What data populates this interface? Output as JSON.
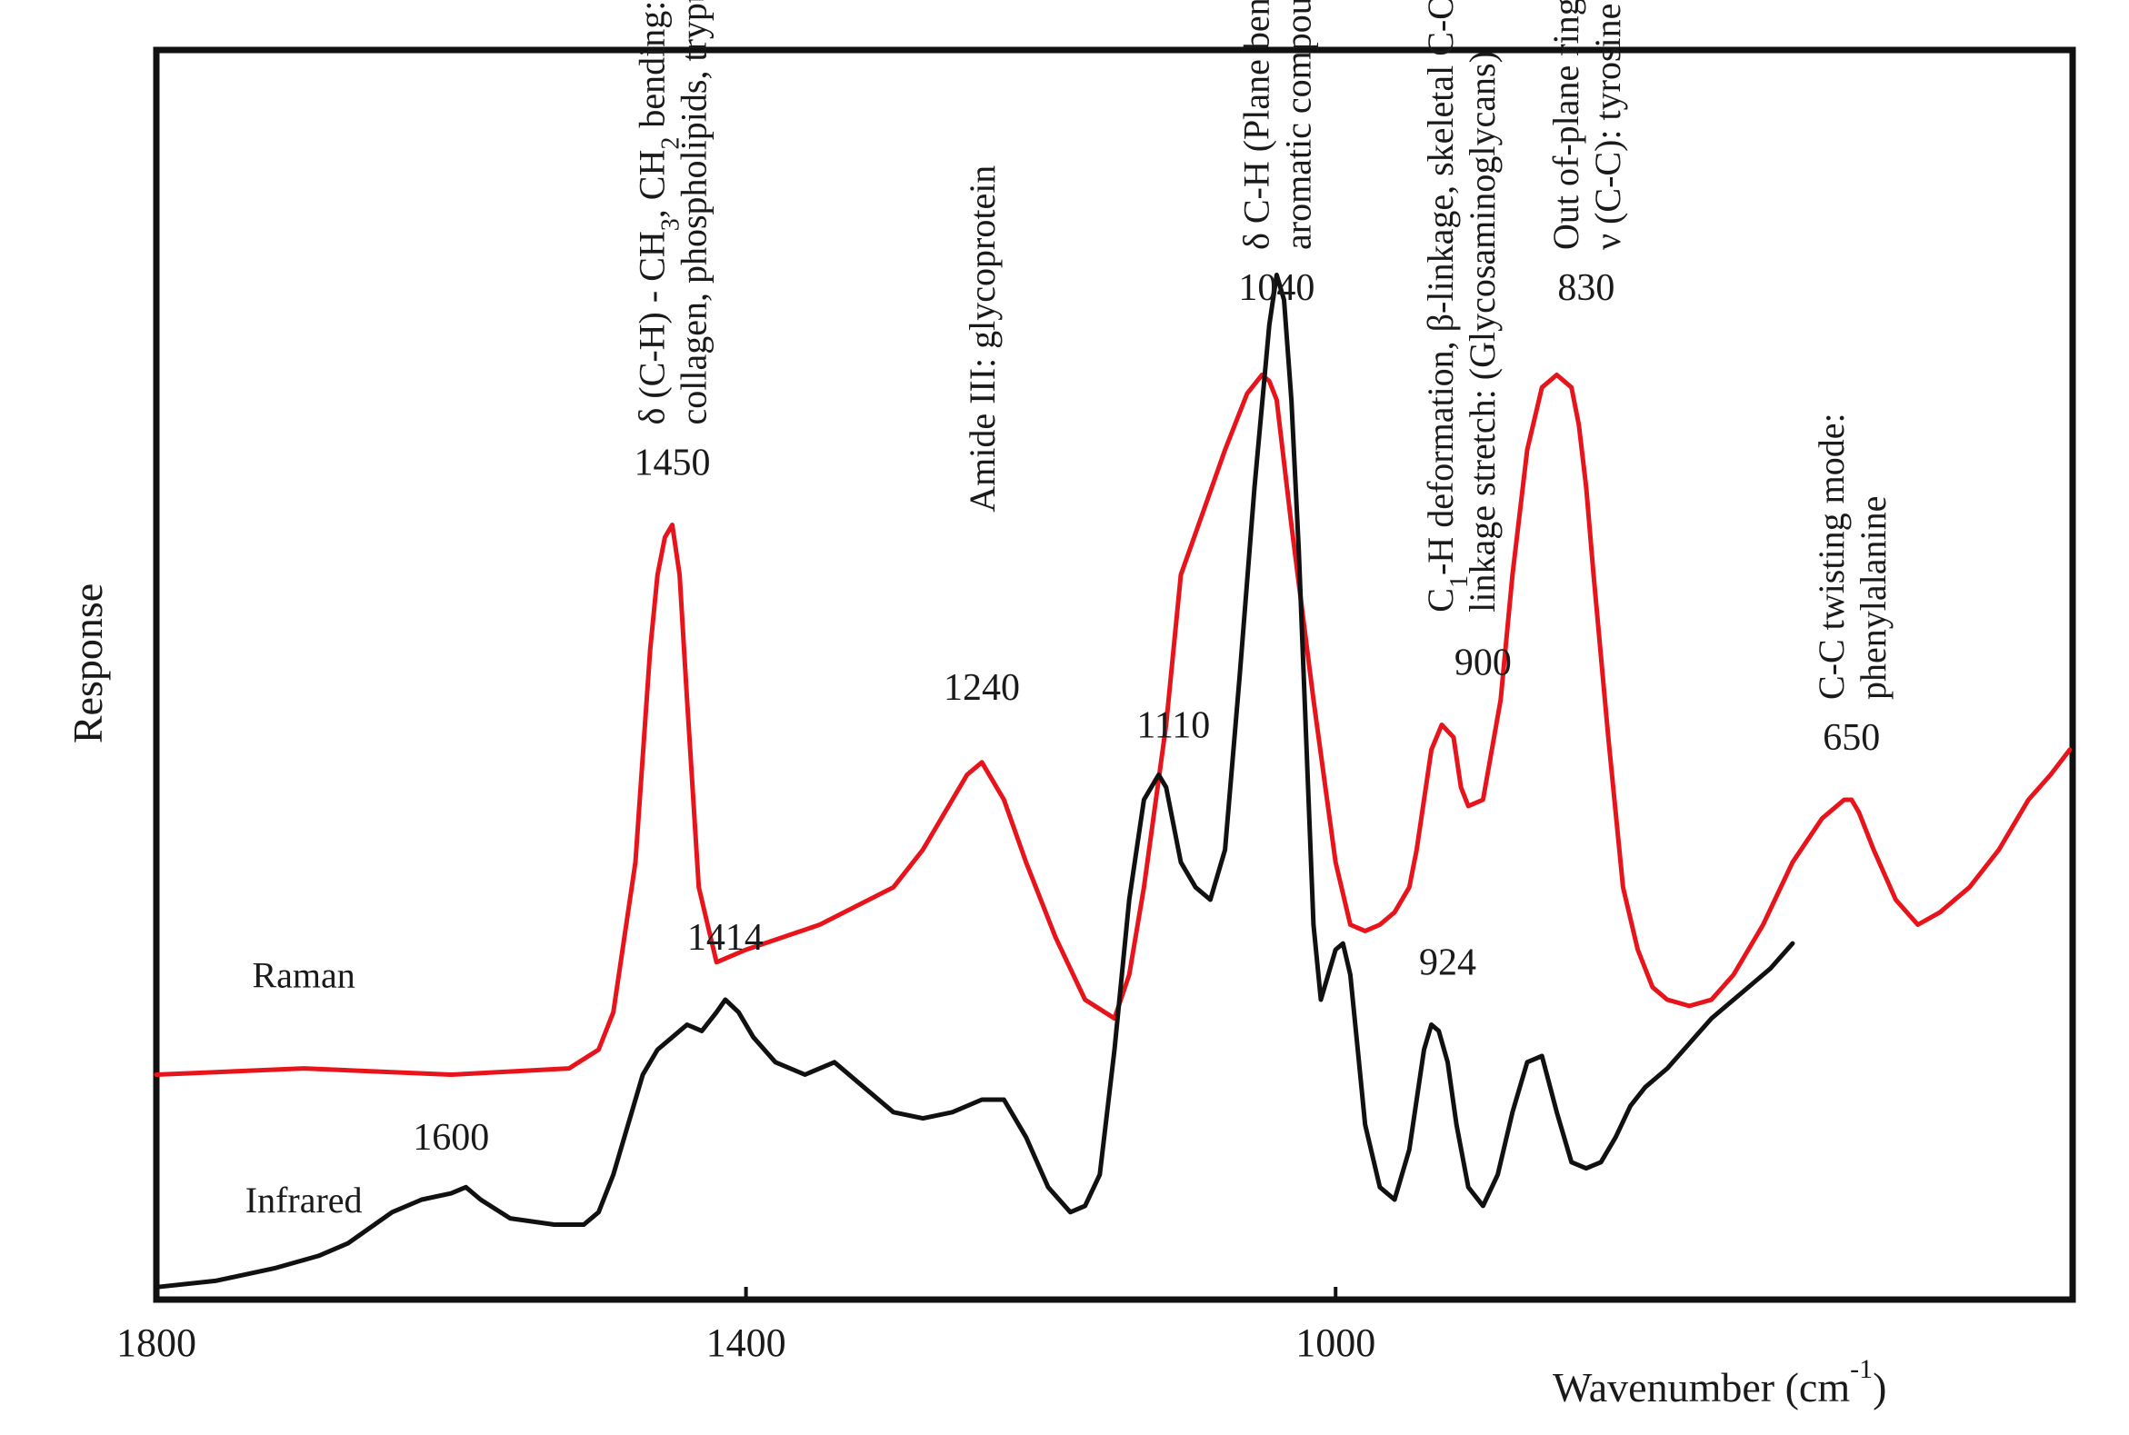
{
  "chart_data": {
    "type": "line",
    "title": "",
    "xlabel": "Wavenumber (cm",
    "xlabel_superscript": "-1",
    "xlabel_close": ")",
    "ylabel": "Response",
    "xlim": [
      1800,
      500
    ],
    "ylim": [
      0,
      100
    ],
    "grid": false,
    "x_ticks": [
      {
        "value": 1800,
        "label": "1800"
      },
      {
        "value": 1400,
        "label": "1400"
      },
      {
        "value": 1000,
        "label": "1000"
      }
    ],
    "series": [
      {
        "name": "Raman",
        "color": "#e8141b",
        "x": [
          1800,
          1700,
          1600,
          1520,
          1500,
          1490,
          1475,
          1465,
          1460,
          1455,
          1450,
          1445,
          1440,
          1432,
          1420,
          1400,
          1350,
          1300,
          1280,
          1260,
          1250,
          1240,
          1225,
          1210,
          1190,
          1170,
          1150,
          1140,
          1130,
          1115,
          1105,
          1090,
          1075,
          1060,
          1050,
          1045,
          1040,
          1030,
          1015,
          1000,
          990,
          980,
          970,
          960,
          950,
          945,
          940,
          935,
          928,
          920,
          915,
          910,
          900,
          888,
          880,
          870,
          860,
          850,
          840,
          835,
          830,
          825,
          815,
          805,
          795,
          785,
          775,
          760,
          745,
          730,
          710,
          690,
          670,
          655,
          650,
          645,
          635,
          620,
          605,
          590,
          570,
          550,
          530,
          515,
          502
        ],
        "values": [
          18.0,
          18.5,
          18.0,
          18.5,
          20.0,
          23.0,
          35.0,
          52.0,
          58.0,
          61.0,
          62.0,
          58.0,
          48.0,
          33.0,
          27.0,
          28.0,
          30.0,
          33.0,
          36.0,
          40.0,
          42.0,
          43.0,
          40.0,
          35.0,
          29.0,
          24.0,
          22.5,
          26.0,
          33.0,
          46.0,
          58.0,
          63.0,
          68.0,
          72.5,
          74.0,
          73.5,
          72.0,
          62.0,
          48.0,
          35.0,
          30.0,
          29.5,
          30.0,
          31.0,
          33.0,
          36.0,
          40.0,
          44.0,
          46.0,
          45.0,
          41.0,
          39.5,
          40.0,
          48.0,
          58.0,
          68.0,
          73.0,
          74.0,
          73.0,
          70.0,
          65.0,
          58.0,
          45.0,
          33.0,
          28.0,
          25.0,
          24.0,
          23.5,
          24.0,
          26.0,
          30.0,
          35.0,
          38.5,
          40.0,
          40.0,
          39.0,
          36.0,
          32.0,
          30.0,
          31.0,
          33.0,
          36.0,
          40.0,
          42.0,
          44.0
        ]
      },
      {
        "name": "Infrared",
        "color": "#111111",
        "x": [
          1800,
          1760,
          1720,
          1690,
          1670,
          1640,
          1620,
          1600,
          1590,
          1580,
          1560,
          1530,
          1510,
          1500,
          1490,
          1480,
          1470,
          1460,
          1450,
          1440,
          1430,
          1420,
          1414,
          1405,
          1395,
          1380,
          1360,
          1340,
          1320,
          1300,
          1280,
          1260,
          1240,
          1225,
          1210,
          1195,
          1180,
          1170,
          1160,
          1150,
          1140,
          1130,
          1120,
          1115,
          1110,
          1105,
          1095,
          1085,
          1075,
          1065,
          1055,
          1045,
          1040,
          1035,
          1030,
          1025,
          1020,
          1015,
          1010,
          1005,
          1000,
          995,
          990,
          985,
          980,
          970,
          960,
          950,
          940,
          935,
          930,
          924,
          918,
          910,
          900,
          890,
          880,
          870,
          860,
          850,
          840,
          830,
          820,
          810,
          800,
          790,
          775,
          760,
          745,
          725,
          705,
          690
        ],
        "values": [
          1.0,
          1.5,
          2.5,
          3.5,
          4.5,
          7.0,
          8.0,
          8.5,
          9.0,
          8.0,
          6.5,
          6.0,
          6.0,
          7.0,
          10.0,
          14.0,
          18.0,
          20.0,
          21.0,
          22.0,
          21.5,
          23.0,
          24.0,
          23.0,
          21.0,
          19.0,
          18.0,
          19.0,
          17.0,
          15.0,
          14.5,
          15.0,
          16.0,
          16.0,
          13.0,
          9.0,
          7.0,
          7.5,
          10.0,
          20.0,
          32.0,
          40.0,
          42.0,
          41.0,
          38.0,
          35.0,
          33.0,
          32.0,
          36.0,
          50.0,
          65.0,
          78.0,
          82.0,
          80.0,
          72.0,
          60.0,
          45.0,
          30.0,
          24.0,
          26.0,
          28.0,
          28.5,
          26.0,
          20.0,
          14.0,
          9.0,
          8.0,
          12.0,
          20.0,
          22.0,
          21.5,
          19.0,
          14.0,
          9.0,
          7.5,
          10.0,
          15.0,
          19.0,
          19.5,
          15.0,
          11.0,
          10.5,
          11.0,
          13.0,
          15.5,
          17.0,
          18.5,
          20.5,
          22.5,
          24.5,
          26.5,
          28.5
        ]
      }
    ],
    "series_labels": [
      {
        "text": "Raman",
        "x": 1700,
        "y": 25
      },
      {
        "text": "Infrared",
        "x": 1700,
        "y": 7
      }
    ],
    "peak_labels": [
      {
        "text": "1450",
        "x": 1450,
        "y": 66
      },
      {
        "text": "1240",
        "x": 1240,
        "y": 48
      },
      {
        "text": "1110",
        "x": 1110,
        "y": 45
      },
      {
        "text": "1040",
        "x": 1040,
        "y": 80
      },
      {
        "text": "900",
        "x": 900,
        "y": 50
      },
      {
        "text": "830",
        "x": 830,
        "y": 80
      },
      {
        "text": "650",
        "x": 650,
        "y": 44
      },
      {
        "text": "1414",
        "x": 1414,
        "y": 28
      },
      {
        "text": "1600",
        "x": 1600,
        "y": 12
      },
      {
        "text": "924",
        "x": 924,
        "y": 26
      }
    ],
    "band_annotations": [
      {
        "id": "ch-bending",
        "x": 1450,
        "y": 70,
        "lines": [
          [
            {
              "t": "δ (C-H) - CH"
            },
            {
              "t": "3",
              "sub": true
            },
            {
              "t": ", CH"
            },
            {
              "t": "2",
              "sub": true
            },
            {
              "t": " bending:"
            }
          ],
          [
            {
              "t": "collagen, phospholipids, tryptophan"
            }
          ]
        ]
      },
      {
        "id": "amide-iii",
        "x": 1240,
        "y": 63,
        "lines": [
          [
            {
              "t": "Amide III: glycoprotein"
            }
          ]
        ]
      },
      {
        "id": "plane-bending",
        "x": 1040,
        "y": 84,
        "lines": [
          [
            {
              "t": "δ C-H (Plane bending)"
            }
          ],
          [
            {
              "t": "aromatic compound:"
            }
          ]
        ]
      },
      {
        "id": "c1h-deformation",
        "x": 915,
        "y": 55,
        "lines": [
          [
            {
              "t": "C"
            },
            {
              "t": "1",
              "sub": true
            },
            {
              "t": "-H deformation, β-linkage, skeletal C-O-C"
            }
          ],
          [
            {
              "t": "linkage stretch: (Glycosaminoglycans)"
            }
          ]
        ]
      },
      {
        "id": "ring-breathing",
        "x": 830,
        "y": 84,
        "lines": [
          [
            {
              "t": "Out of-plane ring breathing"
            }
          ],
          [
            {
              "t": "ν (C-C): tyrosine"
            }
          ]
        ]
      },
      {
        "id": "cc-twisting",
        "x": 650,
        "y": 48,
        "lines": [
          [
            {
              "t": "C-C twisting mode:"
            }
          ],
          [
            {
              "t": "phenylalanine"
            }
          ]
        ]
      }
    ]
  }
}
